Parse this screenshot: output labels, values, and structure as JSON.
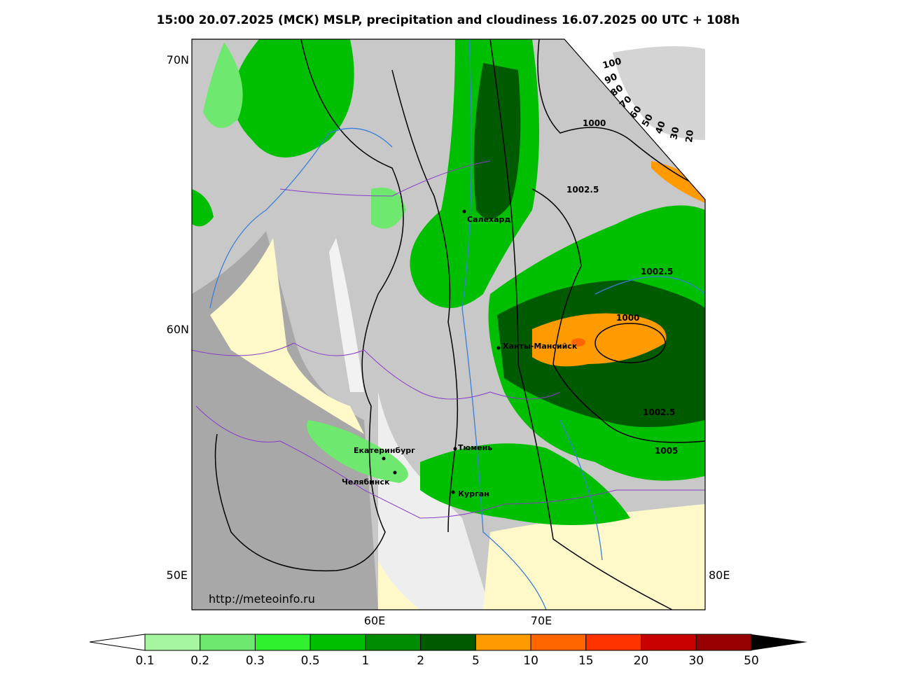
{
  "header": {
    "title": "15:00 20.07.2025 (МСК) MSLP, precipitation and cloudiness 16.07.2025 00 UTC + 108h"
  },
  "axes": {
    "lat": [
      "70N",
      "60N"
    ],
    "lon_left": "50E",
    "lon_right": "80E",
    "lon_bottom": [
      "60E",
      "70E"
    ]
  },
  "cities": [
    "Салехард",
    "Ханты-Мансийск",
    "Екатеринбург",
    "Челябинск",
    "Тюмень",
    "Курган"
  ],
  "isobars": [
    "1000",
    "1002.5",
    "1002.5",
    "1000",
    "1002.5",
    "1005"
  ],
  "cloudiness": [
    100,
    90,
    80,
    70,
    60,
    50,
    40,
    30,
    20
  ],
  "url": "http://meteoinfo.ru",
  "colorbar": {
    "ticks": [
      0.1,
      0.2,
      0.3,
      0.5,
      1,
      2,
      5,
      10,
      15,
      20,
      30,
      50
    ],
    "colors": [
      "#a6f5a0",
      "#6ee86e",
      "#2ef02e",
      "#00be00",
      "#008c00",
      "#005a00",
      "#ff9a00",
      "#ff6600",
      "#ff3300",
      "#c80000",
      "#960000"
    ]
  }
}
